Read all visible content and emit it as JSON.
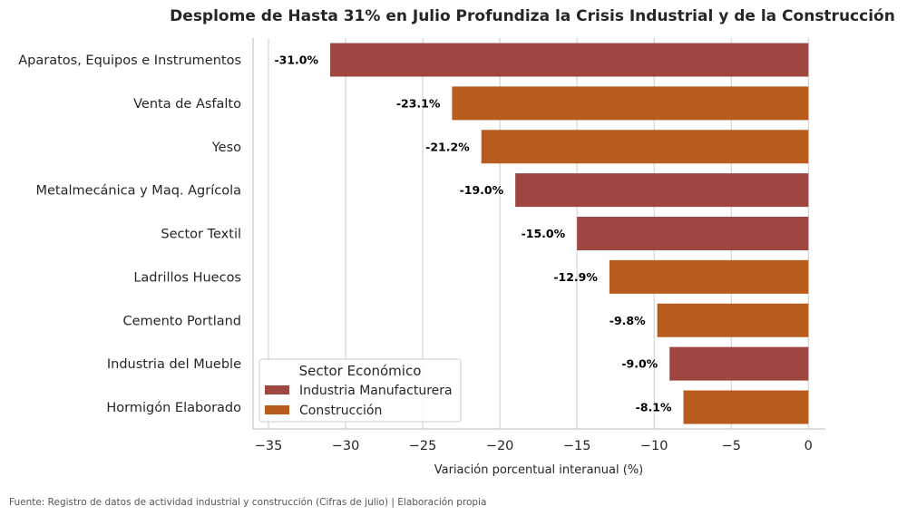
{
  "chart_data": {
    "type": "bar",
    "orientation": "horizontal",
    "title": "Desplome de Hasta 31% en Julio Profundiza la Crisis Industrial y de la Construcción",
    "xlabel": "Variación porcentual interanual (%)",
    "ylabel": "",
    "xlim": [
      -36,
      1.1
    ],
    "xticks": [
      -35,
      -30,
      -25,
      -20,
      -15,
      -10,
      -5,
      0
    ],
    "xtick_labels": [
      "−35",
      "−30",
      "−25",
      "−20",
      "−15",
      "−10",
      "−5",
      "0"
    ],
    "grid": "vertical",
    "categories": [
      "Aparatos, Equipos e Instrumentos",
      "Venta de Asfalto",
      "Yeso",
      "Metalmecánica y Maq. Agrícola",
      "Sector Textil",
      "Ladrillos Huecos",
      "Cemento Portland",
      "Industria del Mueble",
      "Hormigón Elaborado"
    ],
    "values": [
      -31.0,
      -23.1,
      -21.2,
      -19.0,
      -15.0,
      -12.9,
      -9.8,
      -9.0,
      -8.1
    ],
    "value_labels": [
      "-31.0%",
      "-23.1%",
      "-21.2%",
      "-19.0%",
      "-15.0%",
      "-12.9%",
      "-9.8%",
      "-9.0%",
      "-8.1%"
    ],
    "sectors": [
      "Industria Manufacturera",
      "Construcción",
      "Construcción",
      "Industria Manufacturera",
      "Industria Manufacturera",
      "Construcción",
      "Construcción",
      "Industria Manufacturera",
      "Construcción"
    ],
    "legend": {
      "title": "Sector Económico",
      "placement": "lower-left",
      "entries": [
        {
          "name": "Industria Manufacturera",
          "color": "#9e4640"
        },
        {
          "name": "Construcción",
          "color": "#b85c1d"
        }
      ]
    },
    "source_note": "Fuente: Registro de datos de actividad industrial y construcción (Cifras de julio) | Elaboración propia"
  }
}
